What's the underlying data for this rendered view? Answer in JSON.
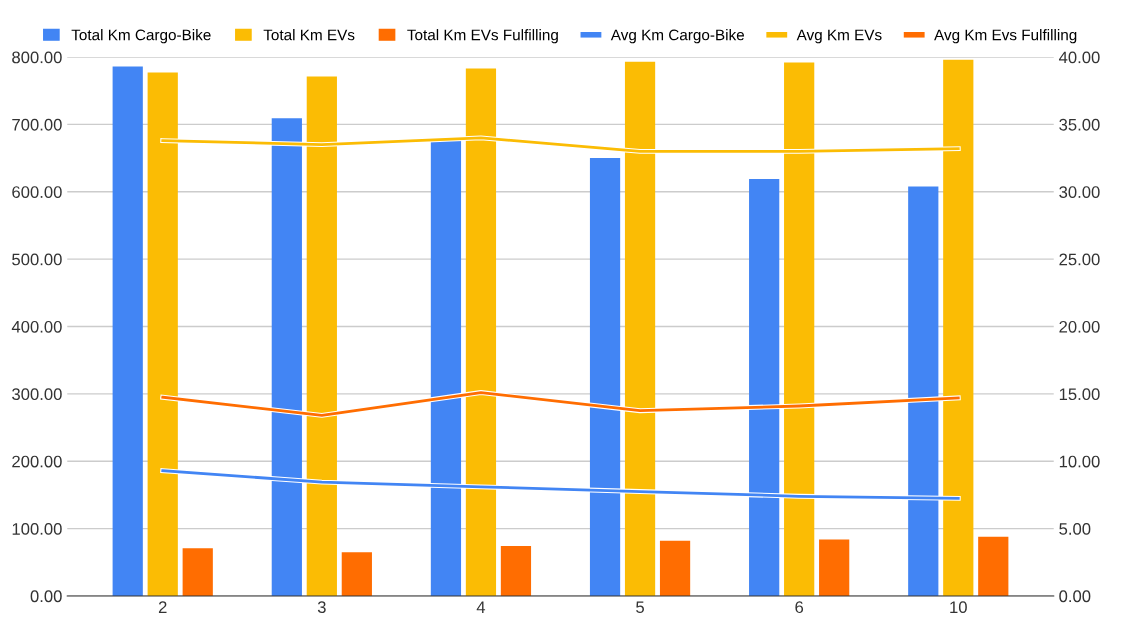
{
  "chart_data": {
    "type": "bar",
    "categories": [
      "2",
      "3",
      "4",
      "5",
      "6",
      "10"
    ],
    "series": [
      {
        "name": "Total Km Cargo-Bike",
        "color": "#4285f4",
        "values": [
          786,
          709,
          676,
          650,
          619,
          608
        ]
      },
      {
        "name": "Total Km EVs",
        "color": "#fbbc04",
        "values": [
          777,
          771,
          783,
          793,
          792,
          796
        ]
      },
      {
        "name": "Total Km EVs Fulfilling",
        "color": "#ff6d01",
        "values": [
          71,
          65,
          74,
          82,
          84,
          88
        ]
      },
      {
        "name": "Avg Km Cargo-Bike",
        "color": "#4285f4",
        "type": "line",
        "axis": "y2",
        "values": [
          9.3,
          8.45,
          8.1,
          7.75,
          7.4,
          7.25
        ]
      },
      {
        "name": "Avg Km EVs",
        "color": "#fbbc04",
        "type": "line",
        "axis": "y2",
        "values": [
          33.8,
          33.5,
          34.0,
          33.0,
          33.0,
          33.2
        ]
      },
      {
        "name": "Avg Km Evs Fulfilling",
        "color": "#ff6d01",
        "type": "line",
        "axis": "y2",
        "values": [
          14.75,
          13.4,
          15.1,
          13.75,
          14.1,
          14.7
        ]
      }
    ],
    "ylim": [
      0,
      800
    ],
    "yticks": [
      {
        "value": 0,
        "label": "0.00"
      },
      {
        "value": 100,
        "label": "100.00"
      },
      {
        "value": 200,
        "label": "200.00"
      },
      {
        "value": 300,
        "label": "300.00"
      },
      {
        "value": 400,
        "label": "400.00"
      },
      {
        "value": 500,
        "label": "500.00"
      },
      {
        "value": 600,
        "label": "600.00"
      },
      {
        "value": 700,
        "label": "700.00"
      },
      {
        "value": 800,
        "label": "800.00"
      }
    ],
    "y2lim": [
      0,
      40
    ],
    "y2ticks": [
      {
        "value": 0,
        "label": "0.00"
      },
      {
        "value": 5,
        "label": "5.00"
      },
      {
        "value": 10,
        "label": "10.00"
      },
      {
        "value": 15,
        "label": "15.00"
      },
      {
        "value": 20,
        "label": "20.00"
      },
      {
        "value": 25,
        "label": "25.00"
      },
      {
        "value": 30,
        "label": "30.00"
      },
      {
        "value": 35,
        "label": "35.00"
      },
      {
        "value": 40,
        "label": "40.00"
      }
    ],
    "grid": "y",
    "legend": "top",
    "marker": "none",
    "line_style": "solid"
  }
}
